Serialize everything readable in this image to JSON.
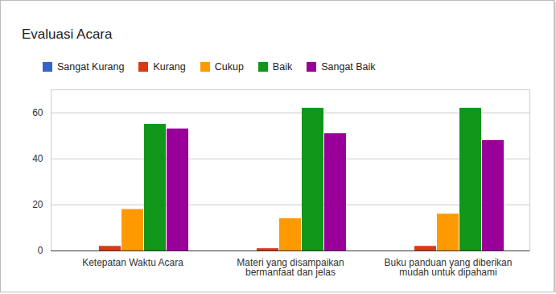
{
  "chart_data": {
    "type": "bar",
    "title": "Evaluasi Acara",
    "categories": [
      "Ketepatan Waktu Acara",
      "Materi yang disampaikan bermanfaat dan jelas",
      "Buku panduan yang diberikan mudah untuk dipahami"
    ],
    "series": [
      {
        "name": "Sangat Kurang",
        "color": "#3366cc",
        "values": [
          0,
          0,
          0
        ]
      },
      {
        "name": "Kurang",
        "color": "#dc3912",
        "values": [
          2,
          1,
          2
        ]
      },
      {
        "name": "Cukup",
        "color": "#ff9900",
        "values": [
          18,
          14,
          16
        ]
      },
      {
        "name": "Baik",
        "color": "#109618",
        "values": [
          55,
          62,
          62
        ]
      },
      {
        "name": "Sangat Baik",
        "color": "#990099",
        "values": [
          53,
          51,
          48
        ]
      }
    ],
    "ylim": [
      0,
      70
    ],
    "yticks": [
      0,
      20,
      40,
      60
    ],
    "grid": true,
    "legend": "top"
  }
}
